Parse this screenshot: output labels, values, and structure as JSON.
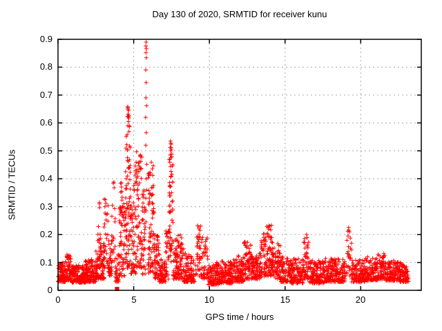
{
  "chart_data": {
    "type": "scatter",
    "title": "Day 130 of 2020, SRMTID for receiver kunu",
    "xlabel": "GPS time / hours",
    "ylabel": "SRMTID / TECUs",
    "xlim": [
      0,
      24
    ],
    "ylim": [
      0,
      0.9
    ],
    "xtick_values": [
      0,
      5,
      10,
      15,
      20
    ],
    "xtick_labels": [
      "0",
      "5",
      "10",
      "15",
      "20"
    ],
    "ytick_values": [
      0,
      0.1,
      0.2,
      0.3,
      0.4,
      0.5,
      0.6,
      0.7,
      0.8,
      0.9
    ],
    "ytick_labels": [
      "0",
      "0.1",
      "0.2",
      "0.3",
      "0.4",
      "0.5",
      "0.6",
      "0.7",
      "0.8",
      "0.9"
    ],
    "grid": true,
    "grid_style": "dashed",
    "legend": "none",
    "marker": "+",
    "marker_color": "#ff0000",
    "series_name": "SRMTID",
    "square_marker_point": {
      "x": 3.9,
      "y": 0.005
    },
    "peak_points": [
      [
        5.82,
        0.89
      ],
      [
        5.8,
        0.876
      ],
      [
        5.84,
        0.866
      ],
      [
        5.81,
        0.852
      ],
      [
        5.83,
        0.834
      ],
      [
        5.8,
        0.79
      ],
      [
        5.82,
        0.745
      ],
      [
        5.81,
        0.69
      ],
      [
        5.85,
        0.662
      ],
      [
        5.79,
        0.62
      ],
      [
        5.83,
        0.565
      ],
      [
        5.8,
        0.52
      ],
      [
        5.86,
        0.452
      ],
      [
        5.82,
        0.4
      ],
      [
        5.84,
        0.36
      ],
      [
        5.8,
        0.33
      ],
      [
        5.82,
        0.285
      ],
      [
        5.81,
        0.245
      ],
      [
        4.62,
        0.655
      ],
      [
        4.66,
        0.645
      ],
      [
        4.63,
        0.632
      ],
      [
        4.68,
        0.618
      ],
      [
        4.65,
        0.605
      ],
      [
        4.61,
        0.59
      ],
      [
        7.43,
        0.535
      ],
      [
        7.47,
        0.524
      ],
      [
        7.41,
        0.512
      ],
      [
        7.45,
        0.5
      ],
      [
        3.12,
        0.325
      ],
      [
        3.16,
        0.312
      ],
      [
        3.1,
        0.3
      ],
      [
        19.2,
        0.225
      ],
      [
        19.26,
        0.21
      ],
      [
        19.16,
        0.195
      ],
      [
        13.95,
        0.232
      ],
      [
        16.42,
        0.2
      ],
      [
        9.22,
        0.232
      ],
      [
        12.52,
        0.172
      ],
      [
        14.52,
        0.168
      ]
    ],
    "noise_bands_format": [
      "x_start",
      "x_end",
      "count",
      "y_min",
      "y_max",
      "bottom_bias_power"
    ],
    "noise_bands": [
      [
        0.0,
        0.5,
        85,
        0.03,
        0.105,
        1.8
      ],
      [
        0.45,
        0.9,
        70,
        0.035,
        0.13,
        1.8
      ],
      [
        0.9,
        1.8,
        150,
        0.028,
        0.09,
        1.7
      ],
      [
        1.8,
        2.5,
        110,
        0.03,
        0.11,
        1.7
      ],
      [
        2.5,
        3.05,
        85,
        0.04,
        0.16,
        1.6
      ],
      [
        2.6,
        2.85,
        12,
        0.16,
        0.335,
        1.3
      ],
      [
        3.0,
        3.3,
        26,
        0.08,
        0.33,
        1.3
      ],
      [
        3.3,
        3.55,
        40,
        0.05,
        0.19,
        1.6
      ],
      [
        3.5,
        3.8,
        20,
        0.1,
        0.42,
        1.5
      ],
      [
        3.78,
        4.05,
        28,
        0.03,
        0.13,
        1.5
      ],
      [
        4.05,
        4.4,
        55,
        0.05,
        0.3,
        1.4
      ],
      [
        4.1,
        4.35,
        10,
        0.28,
        0.39,
        1.1
      ],
      [
        4.45,
        4.8,
        75,
        0.08,
        0.56,
        1.25
      ],
      [
        4.55,
        4.75,
        9,
        0.55,
        0.66,
        1.0
      ],
      [
        4.8,
        5.15,
        50,
        0.06,
        0.33,
        1.5
      ],
      [
        5.0,
        5.15,
        7,
        0.33,
        0.46,
        1.1
      ],
      [
        5.15,
        5.55,
        65,
        0.08,
        0.5,
        1.3
      ],
      [
        5.55,
        5.78,
        35,
        0.05,
        0.36,
        1.4
      ],
      [
        5.95,
        6.35,
        75,
        0.06,
        0.46,
        1.4
      ],
      [
        6.35,
        6.7,
        55,
        0.04,
        0.21,
        1.6
      ],
      [
        6.7,
        7.1,
        70,
        0.03,
        0.12,
        1.7
      ],
      [
        7.1,
        7.32,
        28,
        0.04,
        0.22,
        1.4
      ],
      [
        7.32,
        7.6,
        50,
        0.1,
        0.47,
        1.1
      ],
      [
        7.35,
        7.55,
        11,
        0.44,
        0.535,
        1.0
      ],
      [
        7.6,
        7.92,
        45,
        0.04,
        0.19,
        1.6
      ],
      [
        7.92,
        8.3,
        48,
        0.04,
        0.2,
        1.6
      ],
      [
        8.3,
        9.02,
        95,
        0.03,
        0.135,
        1.8
      ],
      [
        9.05,
        9.45,
        40,
        0.05,
        0.235,
        1.4
      ],
      [
        9.45,
        9.9,
        42,
        0.04,
        0.19,
        1.6
      ],
      [
        9.9,
        10.6,
        95,
        0.02,
        0.1,
        1.7
      ],
      [
        10.6,
        11.6,
        140,
        0.025,
        0.105,
        1.8
      ],
      [
        11.6,
        12.3,
        100,
        0.03,
        0.125,
        1.7
      ],
      [
        12.3,
        12.75,
        62,
        0.04,
        0.175,
        1.5
      ],
      [
        12.75,
        13.4,
        90,
        0.04,
        0.135,
        1.7
      ],
      [
        13.4,
        14.35,
        115,
        0.05,
        0.205,
        1.5
      ],
      [
        13.8,
        14.15,
        9,
        0.18,
        0.235,
        1.1
      ],
      [
        14.35,
        14.7,
        45,
        0.04,
        0.17,
        1.5
      ],
      [
        14.7,
        15.4,
        90,
        0.03,
        0.12,
        1.8
      ],
      [
        15.4,
        16.2,
        105,
        0.025,
        0.115,
        1.8
      ],
      [
        16.2,
        16.6,
        48,
        0.04,
        0.2,
        1.5
      ],
      [
        16.6,
        17.6,
        125,
        0.025,
        0.11,
        1.8
      ],
      [
        17.6,
        19.0,
        175,
        0.03,
        0.115,
        1.8
      ],
      [
        19.05,
        19.4,
        26,
        0.05,
        0.225,
        1.2
      ],
      [
        19.4,
        20.3,
        115,
        0.03,
        0.11,
        1.8
      ],
      [
        20.3,
        21.1,
        105,
        0.035,
        0.12,
        1.7
      ],
      [
        21.1,
        21.6,
        60,
        0.04,
        0.135,
        1.6
      ],
      [
        21.6,
        22.6,
        135,
        0.035,
        0.108,
        1.8
      ],
      [
        22.6,
        23.15,
        72,
        0.03,
        0.1,
        1.7
      ]
    ],
    "seed": 20200510
  },
  "colors": {
    "marker": "#ff0000",
    "grid": "#a6a6a6",
    "border": "#000000",
    "text": "#000000",
    "background": "#ffffff"
  }
}
